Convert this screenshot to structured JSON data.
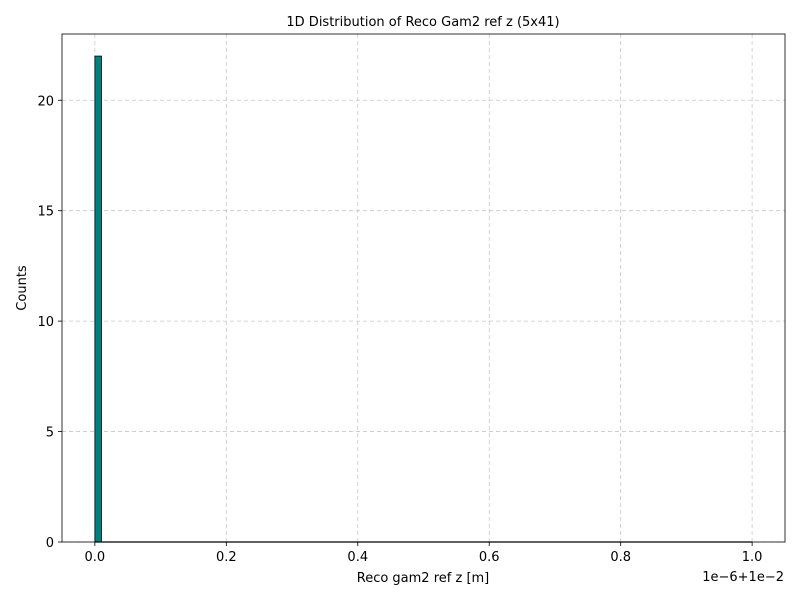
{
  "chart_data": {
    "type": "bar",
    "title": "1D Distribution of Reco Gam2 ref z (5x41)",
    "xlabel": "Reco gam2 ref z [m]",
    "ylabel": "Counts",
    "x_offset_label": "1e−6+1e−2",
    "xlim": [
      -0.05,
      1.05
    ],
    "ylim": [
      0,
      23
    ],
    "xticks": [
      0.0,
      0.2,
      0.4,
      0.6,
      0.8,
      1.0
    ],
    "xtick_labels": [
      "0.0",
      "0.2",
      "0.4",
      "0.6",
      "0.8",
      "1.0"
    ],
    "yticks": [
      0,
      5,
      10,
      15,
      20
    ],
    "ytick_labels": [
      "0",
      "5",
      "10",
      "15",
      "20"
    ],
    "bins": [
      {
        "x0": 0.0,
        "x1": 0.01,
        "count": 22
      }
    ],
    "bar_color": "#008080",
    "grid": true
  }
}
